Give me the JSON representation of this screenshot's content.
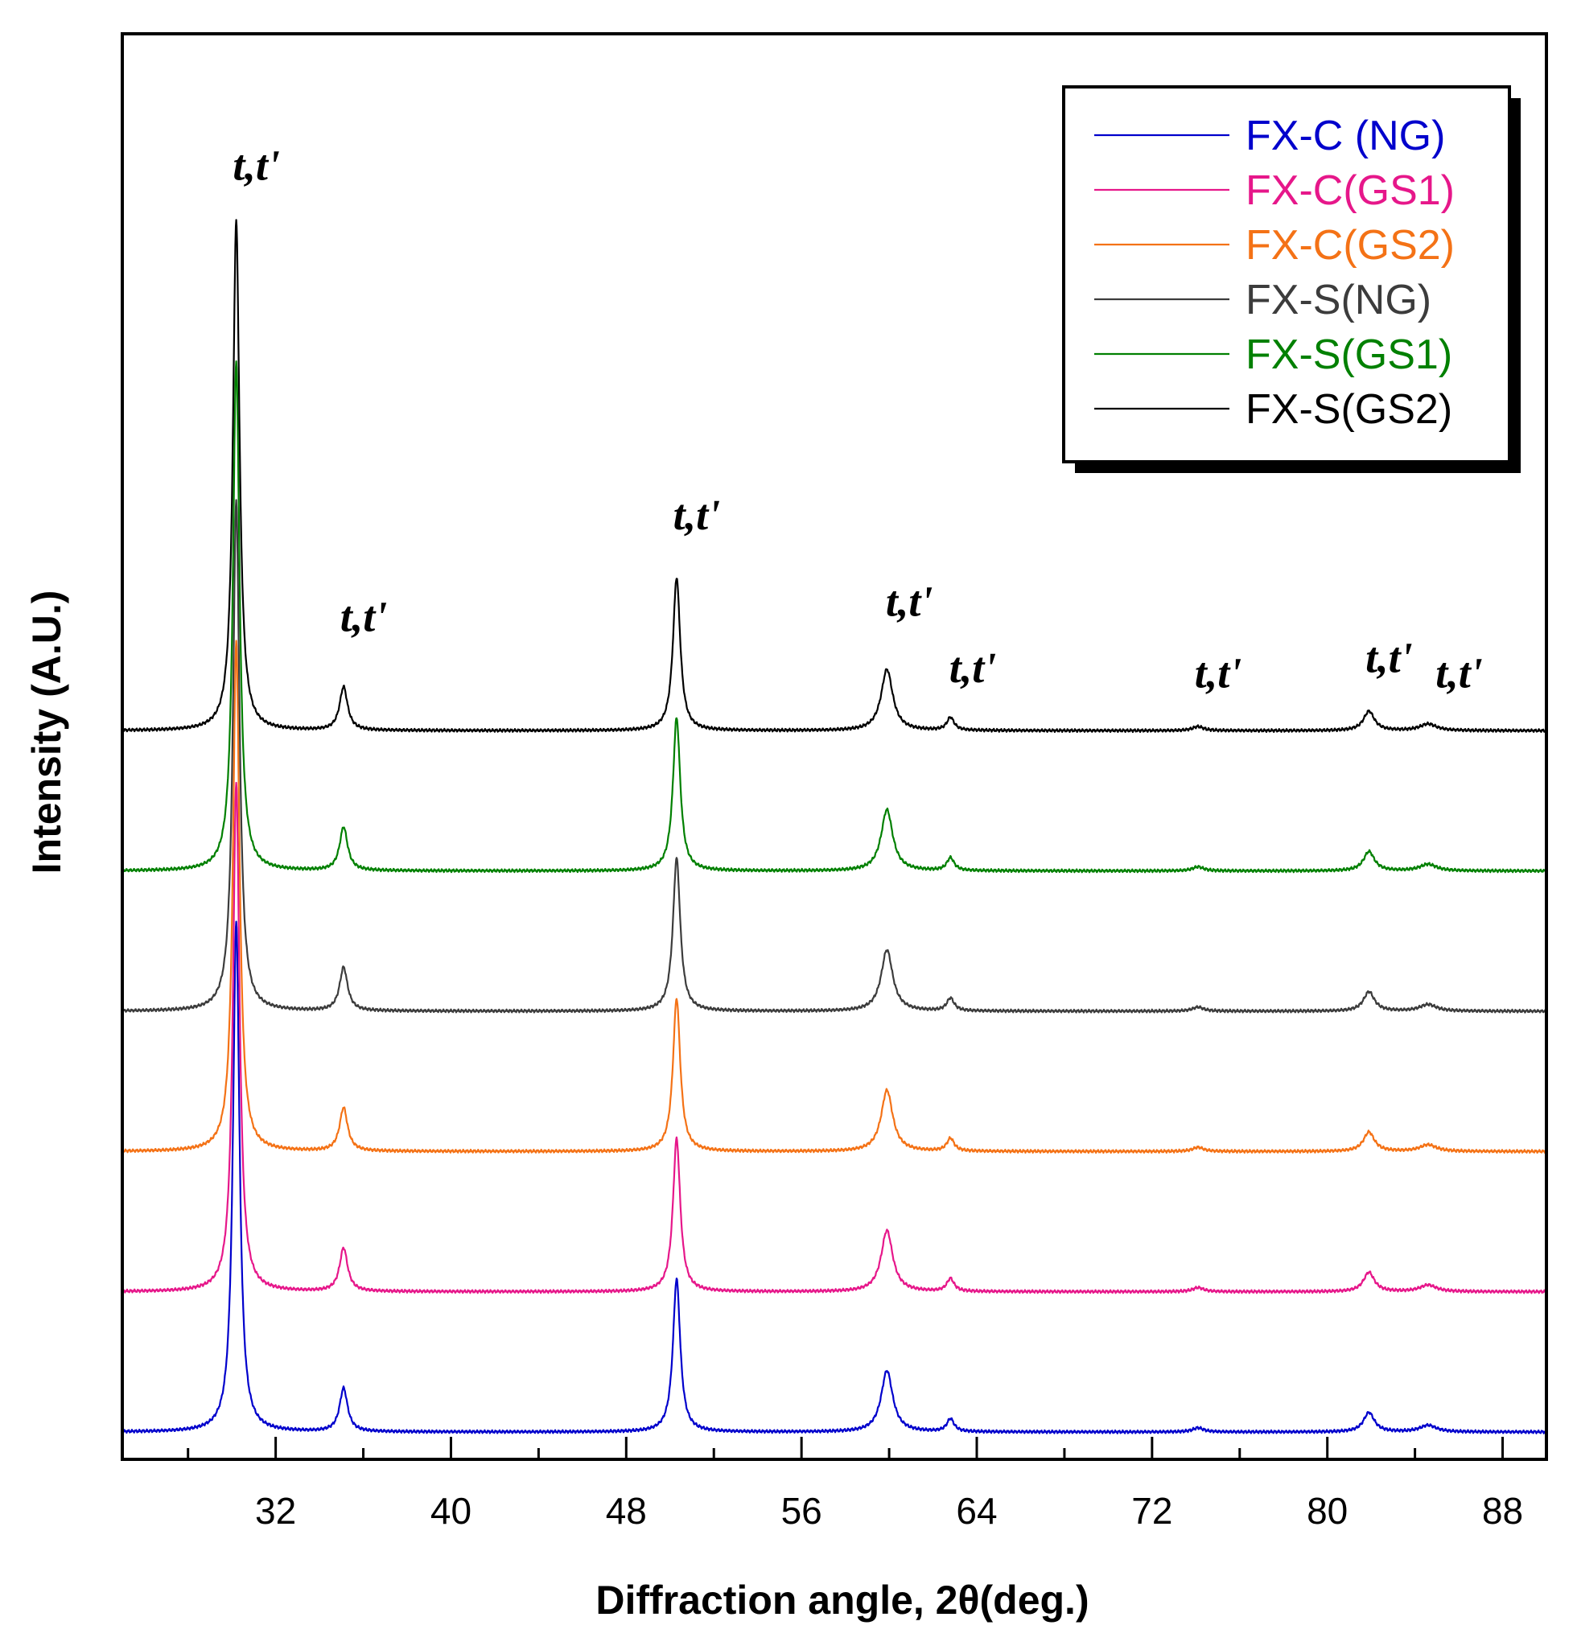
{
  "chart_data": {
    "type": "line",
    "title": "",
    "xlabel": "Diffraction angle, 2θ(deg.)",
    "ylabel": "Intensity (A.U.)",
    "xlim": [
      25,
      90
    ],
    "xticks": [
      32,
      40,
      48,
      56,
      64,
      72,
      80,
      88
    ],
    "y_ticks_shown": false,
    "legend_position": "top-right",
    "peaks": [
      {
        "x": 30.2,
        "height": 1.0,
        "width": 0.18
      },
      {
        "x": 35.1,
        "height": 0.085,
        "width": 0.22
      },
      {
        "x": 50.3,
        "height": 0.3,
        "width": 0.2
      },
      {
        "x": 59.9,
        "height": 0.12,
        "width": 0.32
      },
      {
        "x": 62.8,
        "height": 0.025,
        "width": 0.2
      },
      {
        "x": 74.1,
        "height": 0.008,
        "width": 0.3
      },
      {
        "x": 81.9,
        "height": 0.038,
        "width": 0.3
      },
      {
        "x": 84.6,
        "height": 0.013,
        "width": 0.45
      }
    ],
    "peak_labels": [
      {
        "text": "t,t'",
        "x": 30.2,
        "y": 1.08
      },
      {
        "text": "t,t'",
        "x": 35.1,
        "y": 0.195
      },
      {
        "text": "t,t'",
        "x": 50.3,
        "y": 0.395
      },
      {
        "text": "t,t'",
        "x": 60.0,
        "y": 0.225
      },
      {
        "text": "t,t'",
        "x": 62.9,
        "y": 0.095
      },
      {
        "text": "t,t'",
        "x": 74.1,
        "y": 0.085
      },
      {
        "text": "t,t'",
        "x": 81.9,
        "y": 0.115
      },
      {
        "text": "t,t'",
        "x": 85.1,
        "y": 0.085
      }
    ],
    "series": [
      {
        "name": "FX-C (NG)",
        "color": "#0000cc",
        "offset": 0.0,
        "scale": 1.0
      },
      {
        "name": "FX-C(GS1)",
        "color": "#e6178a",
        "offset": 0.275,
        "scale": 1.0
      },
      {
        "name": "FX-C(GS2)",
        "color": "#f47216",
        "offset": 0.55,
        "scale": 1.0
      },
      {
        "name": "FX-S(NG)",
        "color": "#3c3c3c",
        "offset": 0.825,
        "scale": 1.0
      },
      {
        "name": "FX-S(GS1)",
        "color": "#008000",
        "offset": 1.1,
        "scale": 1.0
      },
      {
        "name": "FX-S(GS2)",
        "color": "#000000",
        "offset": 1.375,
        "scale": 1.0
      }
    ]
  }
}
